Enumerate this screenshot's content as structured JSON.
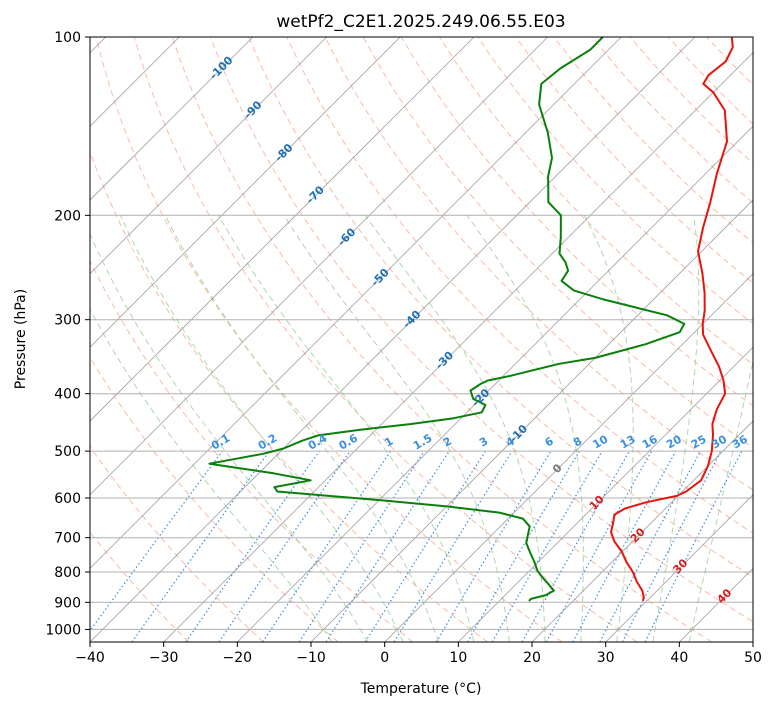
{
  "chart_data": {
    "type": "line",
    "title": "wetPf2_C2E1.2025.249.06.55.E03",
    "xlabel": "Temperature (°C)",
    "ylabel": "Pressure (hPa)",
    "xlim": [
      -40,
      50
    ],
    "ylim": [
      1050,
      100
    ],
    "x_ticks": [
      -40,
      -30,
      -20,
      -10,
      0,
      10,
      20,
      30,
      40,
      50
    ],
    "x_tick_labels": [
      "−40",
      "−30",
      "−20",
      "−10",
      "0",
      "10",
      "20",
      "30",
      "40",
      "50"
    ],
    "y_ticks": [
      100,
      200,
      300,
      400,
      500,
      600,
      700,
      800,
      900,
      1000
    ],
    "y_tick_labels": [
      "100",
      "200",
      "300",
      "400",
      "500",
      "600",
      "700",
      "800",
      "900",
      "1000"
    ],
    "skew": 35,
    "colors": {
      "temperature": "#e8140c",
      "dewpoint": "#0a7f0a",
      "grid": "#b0b0b0",
      "isotherm": "#888888",
      "dry_adiabat": "#f5a58a",
      "moist_adiabat": "#9fd19f",
      "mixing_ratio": "#3a8fe0",
      "isotherm_label": "#1f6fb5",
      "red_label": "#d42020",
      "zero_label": "#777777"
    },
    "series": [
      {
        "name": "Temperature",
        "color": "#e8140c",
        "points": [
          [
            29.5,
            895
          ],
          [
            29.0,
            880
          ],
          [
            28.0,
            860
          ],
          [
            26.0,
            830
          ],
          [
            24.2,
            800
          ],
          [
            22.0,
            770
          ],
          [
            20.0,
            740
          ],
          [
            17.5,
            710
          ],
          [
            15.8,
            685
          ],
          [
            14.8,
            660
          ],
          [
            13.9,
            640
          ],
          [
            14.5,
            625
          ],
          [
            16.5,
            610
          ],
          [
            19.8,
            595
          ],
          [
            20.5,
            585
          ],
          [
            21.0,
            560
          ],
          [
            20.0,
            530
          ],
          [
            18.5,
            500
          ],
          [
            16.5,
            470
          ],
          [
            14.9,
            450
          ],
          [
            13.5,
            425
          ],
          [
            12.5,
            400
          ],
          [
            10.5,
            380
          ],
          [
            8.0,
            360
          ],
          [
            5.0,
            340
          ],
          [
            1.5,
            318
          ],
          [
            0.0,
            305
          ],
          [
            -1.5,
            290
          ],
          [
            -4.0,
            270
          ],
          [
            -7.0,
            250
          ],
          [
            -10.5,
            230
          ],
          [
            -13.0,
            210
          ],
          [
            -15.5,
            190
          ],
          [
            -18.5,
            170
          ],
          [
            -21.5,
            150
          ],
          [
            -26.0,
            133
          ],
          [
            -30.0,
            124
          ],
          [
            -32.5,
            120
          ],
          [
            -33.0,
            116
          ],
          [
            -32.5,
            110
          ],
          [
            -33.5,
            104
          ],
          [
            -35.0,
            100
          ]
        ]
      },
      {
        "name": "Dewpoint",
        "color": "#0a7f0a",
        "points": [
          [
            14.0,
            895
          ],
          [
            14.0,
            888
          ],
          [
            15.5,
            875
          ],
          [
            16.0,
            860
          ],
          [
            14.5,
            840
          ],
          [
            12.5,
            815
          ],
          [
            11.0,
            795
          ],
          [
            9.5,
            770
          ],
          [
            7.5,
            740
          ],
          [
            5.8,
            715
          ],
          [
            5.0,
            695
          ],
          [
            4.0,
            670
          ],
          [
            2.0,
            650
          ],
          [
            -2.0,
            635
          ],
          [
            -10.0,
            620
          ],
          [
            -20.0,
            605
          ],
          [
            -35.0,
            585
          ],
          [
            -36.0,
            575
          ],
          [
            -32.0,
            560
          ],
          [
            -38.0,
            545
          ],
          [
            -48.0,
            525
          ],
          [
            -45.0,
            515
          ],
          [
            -42.0,
            505
          ],
          [
            -40.0,
            495
          ],
          [
            -38.5,
            480
          ],
          [
            -37.0,
            470
          ],
          [
            -32.0,
            460
          ],
          [
            -26.0,
            450
          ],
          [
            -21.0,
            440
          ],
          [
            -18.0,
            430
          ],
          [
            -18.5,
            418
          ],
          [
            -21.0,
            408
          ],
          [
            -22.5,
            395
          ],
          [
            -22.0,
            385
          ],
          [
            -21.5,
            380
          ],
          [
            -19.0,
            373
          ],
          [
            -17.0,
            366
          ],
          [
            -14.0,
            356
          ],
          [
            -10.0,
            348
          ],
          [
            -5.0,
            330
          ],
          [
            -2.0,
            315
          ],
          [
            -2.5,
            305
          ],
          [
            -6.0,
            295
          ],
          [
            -12.0,
            285
          ],
          [
            -17.0,
            277
          ],
          [
            -22.0,
            268
          ],
          [
            -25.0,
            258
          ],
          [
            -25.5,
            248
          ],
          [
            -27.0,
            240
          ],
          [
            -29.0,
            232
          ],
          [
            -31.0,
            218
          ],
          [
            -34.0,
            200
          ],
          [
            -37.5,
            190
          ],
          [
            -39.0,
            182
          ],
          [
            -41.0,
            172
          ],
          [
            -43.0,
            160
          ],
          [
            -47.0,
            145
          ],
          [
            -52.0,
            130
          ],
          [
            -54.5,
            120
          ],
          [
            -54.0,
            113
          ],
          [
            -52.5,
            105
          ],
          [
            -52.5,
            100
          ]
        ]
      }
    ],
    "isotherm_labels": [
      {
        "text": "-100",
        "t": -100,
        "p": 113
      },
      {
        "text": "-90",
        "t": -90,
        "p": 133
      },
      {
        "text": "-80",
        "t": -80,
        "p": 157
      },
      {
        "text": "-70",
        "t": -70,
        "p": 185
      },
      {
        "text": "-60",
        "t": -60,
        "p": 218
      },
      {
        "text": "-50",
        "t": -50,
        "p": 255
      },
      {
        "text": "-40",
        "t": -40,
        "p": 300
      },
      {
        "text": "-30",
        "t": -30,
        "p": 352
      },
      {
        "text": "-20",
        "t": -20,
        "p": 407
      },
      {
        "text": "-10",
        "t": -10,
        "p": 468
      },
      {
        "text": "0",
        "t": 0,
        "p": 536
      },
      {
        "text": "10",
        "t": 10,
        "p": 612
      },
      {
        "text": "20",
        "t": 20,
        "p": 695
      },
      {
        "text": "30",
        "t": 30,
        "p": 784
      },
      {
        "text": "40",
        "t": 40,
        "p": 880
      }
    ],
    "mixing_ratios": [
      {
        "label": "0.1",
        "w": 0.1
      },
      {
        "label": "0.2",
        "w": 0.2
      },
      {
        "label": "0.4",
        "w": 0.4
      },
      {
        "label": "0.6",
        "w": 0.6
      },
      {
        "label": "1",
        "w": 1
      },
      {
        "label": "1.5",
        "w": 1.5
      },
      {
        "label": "2",
        "w": 2
      },
      {
        "label": "3",
        "w": 3
      },
      {
        "label": "4",
        "w": 4
      },
      {
        "label": "6",
        "w": 6
      },
      {
        "label": "8",
        "w": 8
      },
      {
        "label": "10",
        "w": 10
      },
      {
        "label": "13",
        "w": 13
      },
      {
        "label": "16",
        "w": 16
      },
      {
        "label": "20",
        "w": 20
      },
      {
        "label": "25",
        "w": 25
      },
      {
        "label": "30",
        "w": 30
      },
      {
        "label": "36",
        "w": 36
      }
    ]
  }
}
